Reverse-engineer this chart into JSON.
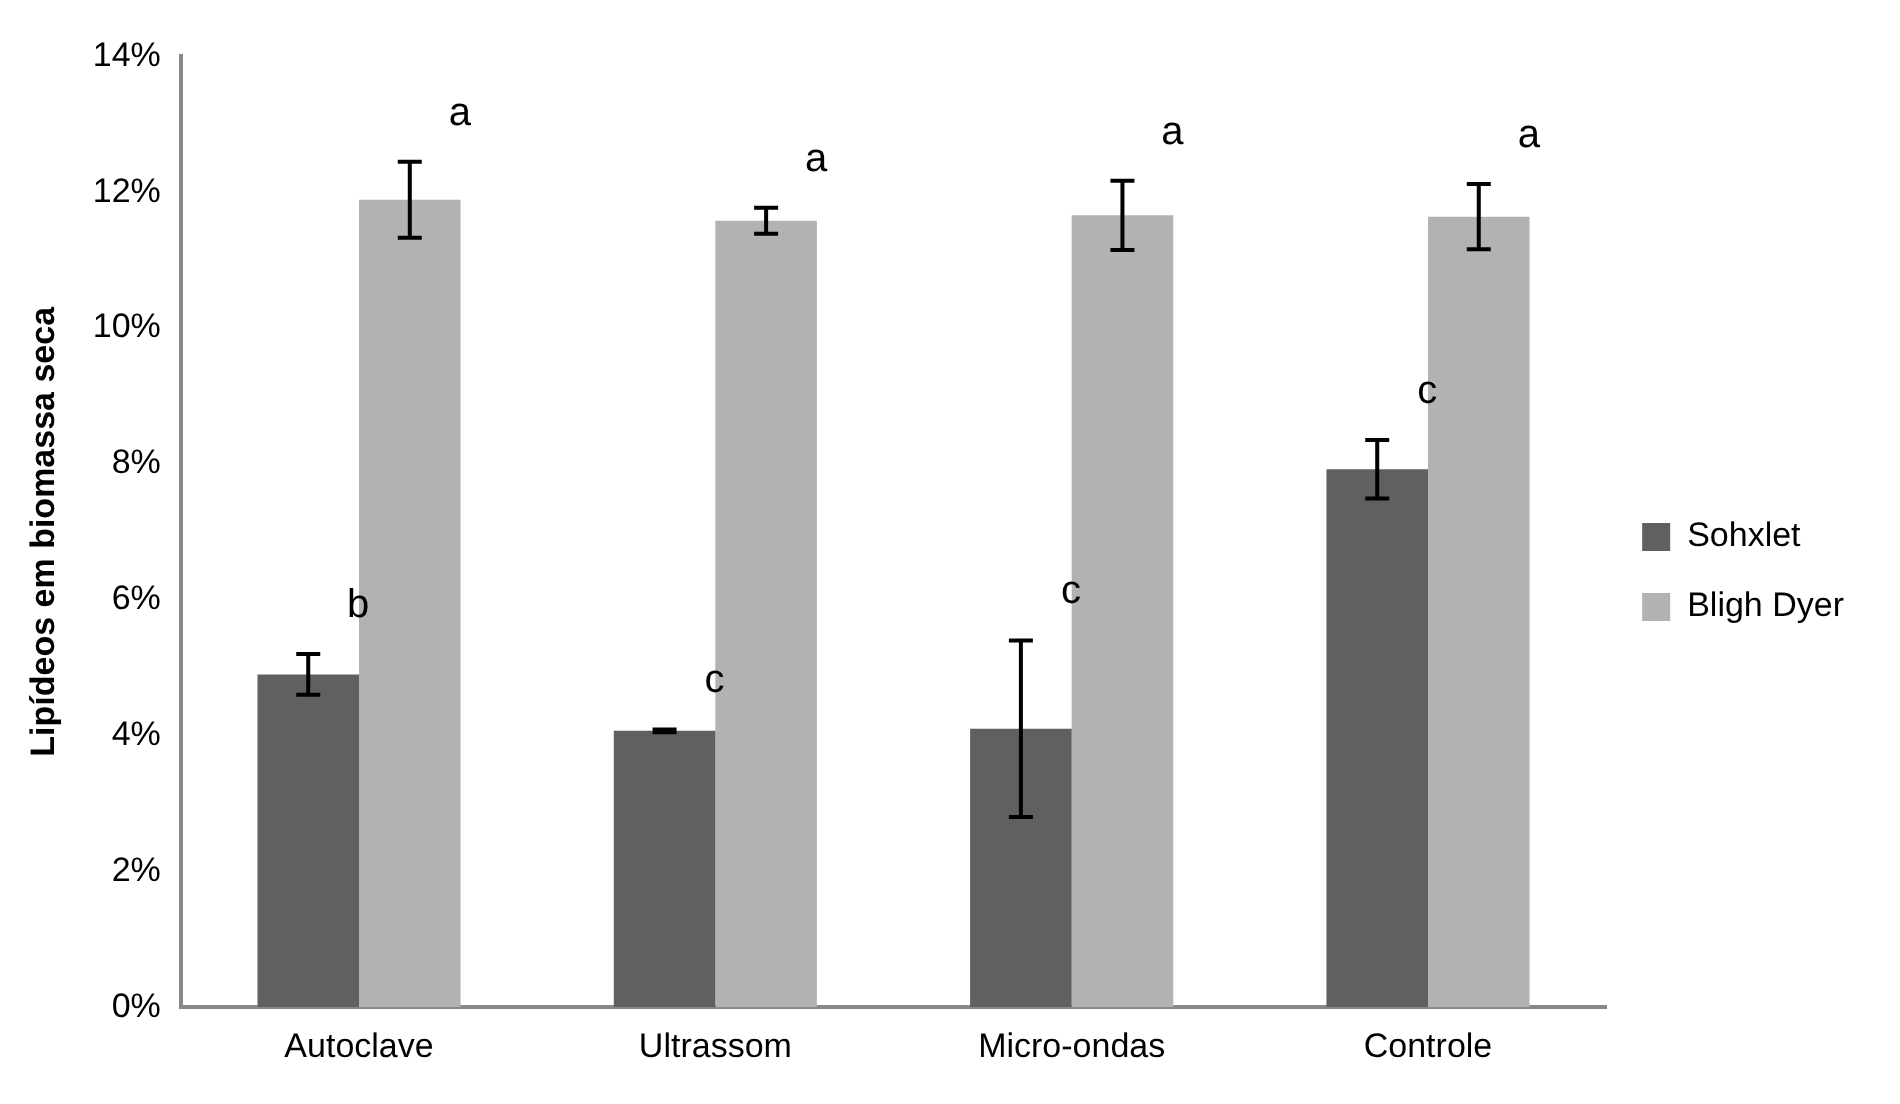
{
  "chart_data": {
    "type": "bar",
    "ylabel": "Lipídeos em biomassa seca",
    "categories": [
      "Autoclave",
      "Ultrassom",
      "Micro-ondas",
      "Controle"
    ],
    "series": [
      {
        "name": "Sohxlet",
        "color": "#606060",
        "values": [
          4.9,
          4.07,
          4.1,
          7.92
        ],
        "errors": [
          0.3,
          0.02,
          1.3,
          0.43
        ],
        "value_labels": [
          "b",
          "c",
          "c",
          "c"
        ]
      },
      {
        "name": "Bligh Dyer",
        "color": "#b2b2b2",
        "values": [
          11.89,
          11.58,
          11.66,
          11.64
        ],
        "errors": [
          0.56,
          0.19,
          0.51,
          0.48
        ],
        "value_labels": [
          "a",
          "a",
          "a",
          "a"
        ]
      }
    ],
    "ylim": [
      0,
      14
    ],
    "yticks": [
      {
        "value": 0,
        "label": "0%"
      },
      {
        "value": 2,
        "label": "2%"
      },
      {
        "value": 4,
        "label": "4%"
      },
      {
        "value": 6,
        "label": "6%"
      },
      {
        "value": 8,
        "label": "8%"
      },
      {
        "value": 10,
        "label": "10%"
      },
      {
        "value": 12,
        "label": "12%"
      },
      {
        "value": 14,
        "label": "14%"
      }
    ],
    "grid": false,
    "legend": "right"
  }
}
